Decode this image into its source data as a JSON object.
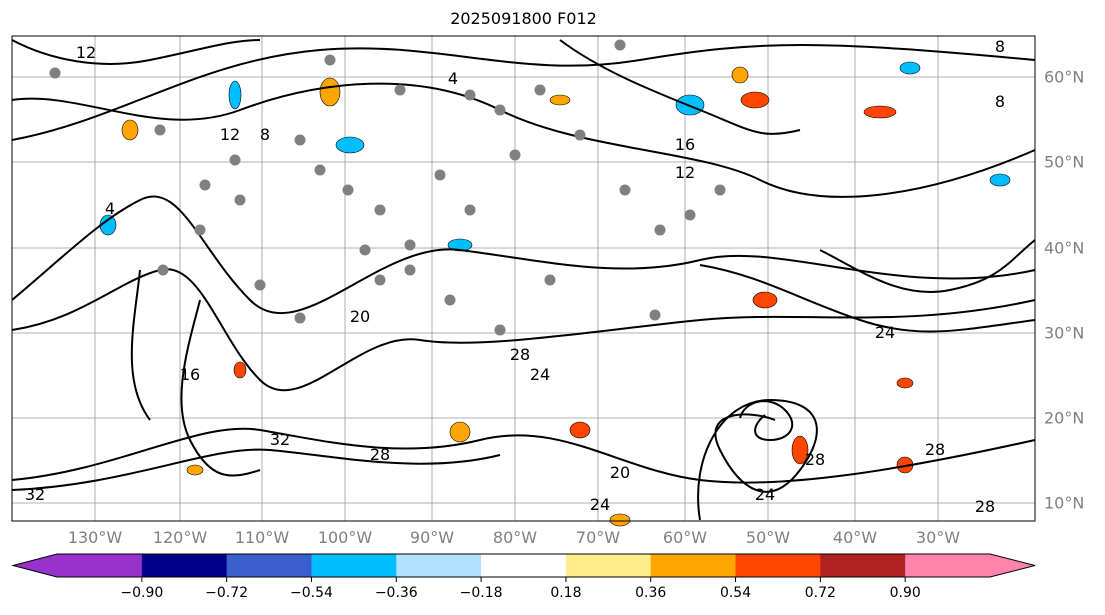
{
  "title": "2025091800 F012",
  "lon_labels": [
    "130°W",
    "120°W",
    "110°W",
    "100°W",
    "90°W",
    "80°W",
    "70°W",
    "60°W",
    "50°W",
    "40°W",
    "30°W"
  ],
  "lat_labels": [
    "60°N",
    "50°N",
    "40°N",
    "30°N",
    "20°N",
    "10°N"
  ],
  "colorbar": {
    "ticks": [
      "−0.90",
      "−0.72",
      "−0.54",
      "−0.36",
      "−0.18",
      "0.18",
      "0.36",
      "0.54",
      "0.72",
      "0.90"
    ],
    "colors": [
      "#9932cc",
      "#00008b",
      "#3a5fcd",
      "#00bfff",
      "#b0e2ff",
      "#ffffff",
      "#ffec8b",
      "#ffa500",
      "#ff4500",
      "#b22222",
      "#ff83aa"
    ]
  },
  "contour_labels": [
    "12",
    "8",
    "4",
    "12",
    "8",
    "16",
    "12",
    "8",
    "4",
    "20",
    "24",
    "28",
    "32",
    "20",
    "24",
    "28",
    "24",
    "16",
    "28",
    "24",
    "28",
    "32",
    "28"
  ],
  "markers": {
    "color": "#808080"
  }
}
